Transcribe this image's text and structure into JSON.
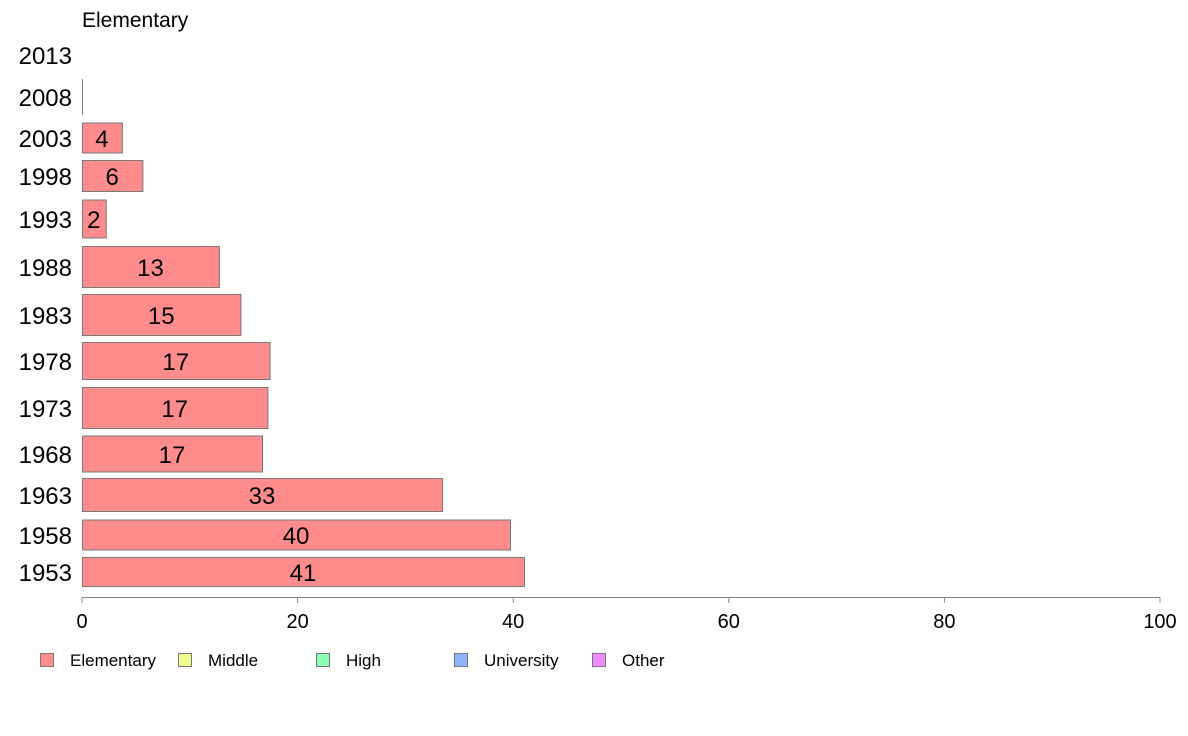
{
  "chart_data": {
    "type": "bar",
    "orientation": "horizontal",
    "title": "Elementary",
    "categories": [
      "2013",
      "2008",
      "2003",
      "1998",
      "1993",
      "1988",
      "1983",
      "1978",
      "1973",
      "1968",
      "1963",
      "1958",
      "1953"
    ],
    "series": [
      {
        "name": "Elementary",
        "color": "#ff8c8c",
        "values": [
          0,
          0,
          3.7,
          5.6,
          2.2,
          12.7,
          14.7,
          17.4,
          17.2,
          16.7,
          33.4,
          39.7,
          41
        ],
        "labels": [
          "",
          "",
          "4",
          "6",
          "2",
          "13",
          "15",
          "17",
          "17",
          "17",
          "33",
          "40",
          "41"
        ]
      }
    ],
    "xlim": [
      0,
      100
    ],
    "xticks": [
      "0",
      "20",
      "40",
      "60",
      "80",
      "100"
    ],
    "legend": {
      "placement": "bottom",
      "items": [
        {
          "label": "Elementary",
          "color": "#ff8c8c"
        },
        {
          "label": "Middle",
          "color": "#eeff8c"
        },
        {
          "label": "High",
          "color": "#8cffb4"
        },
        {
          "label": "University",
          "color": "#8cb4ff"
        },
        {
          "label": "Other",
          "color": "#ee8cff"
        }
      ]
    },
    "grid": false
  }
}
